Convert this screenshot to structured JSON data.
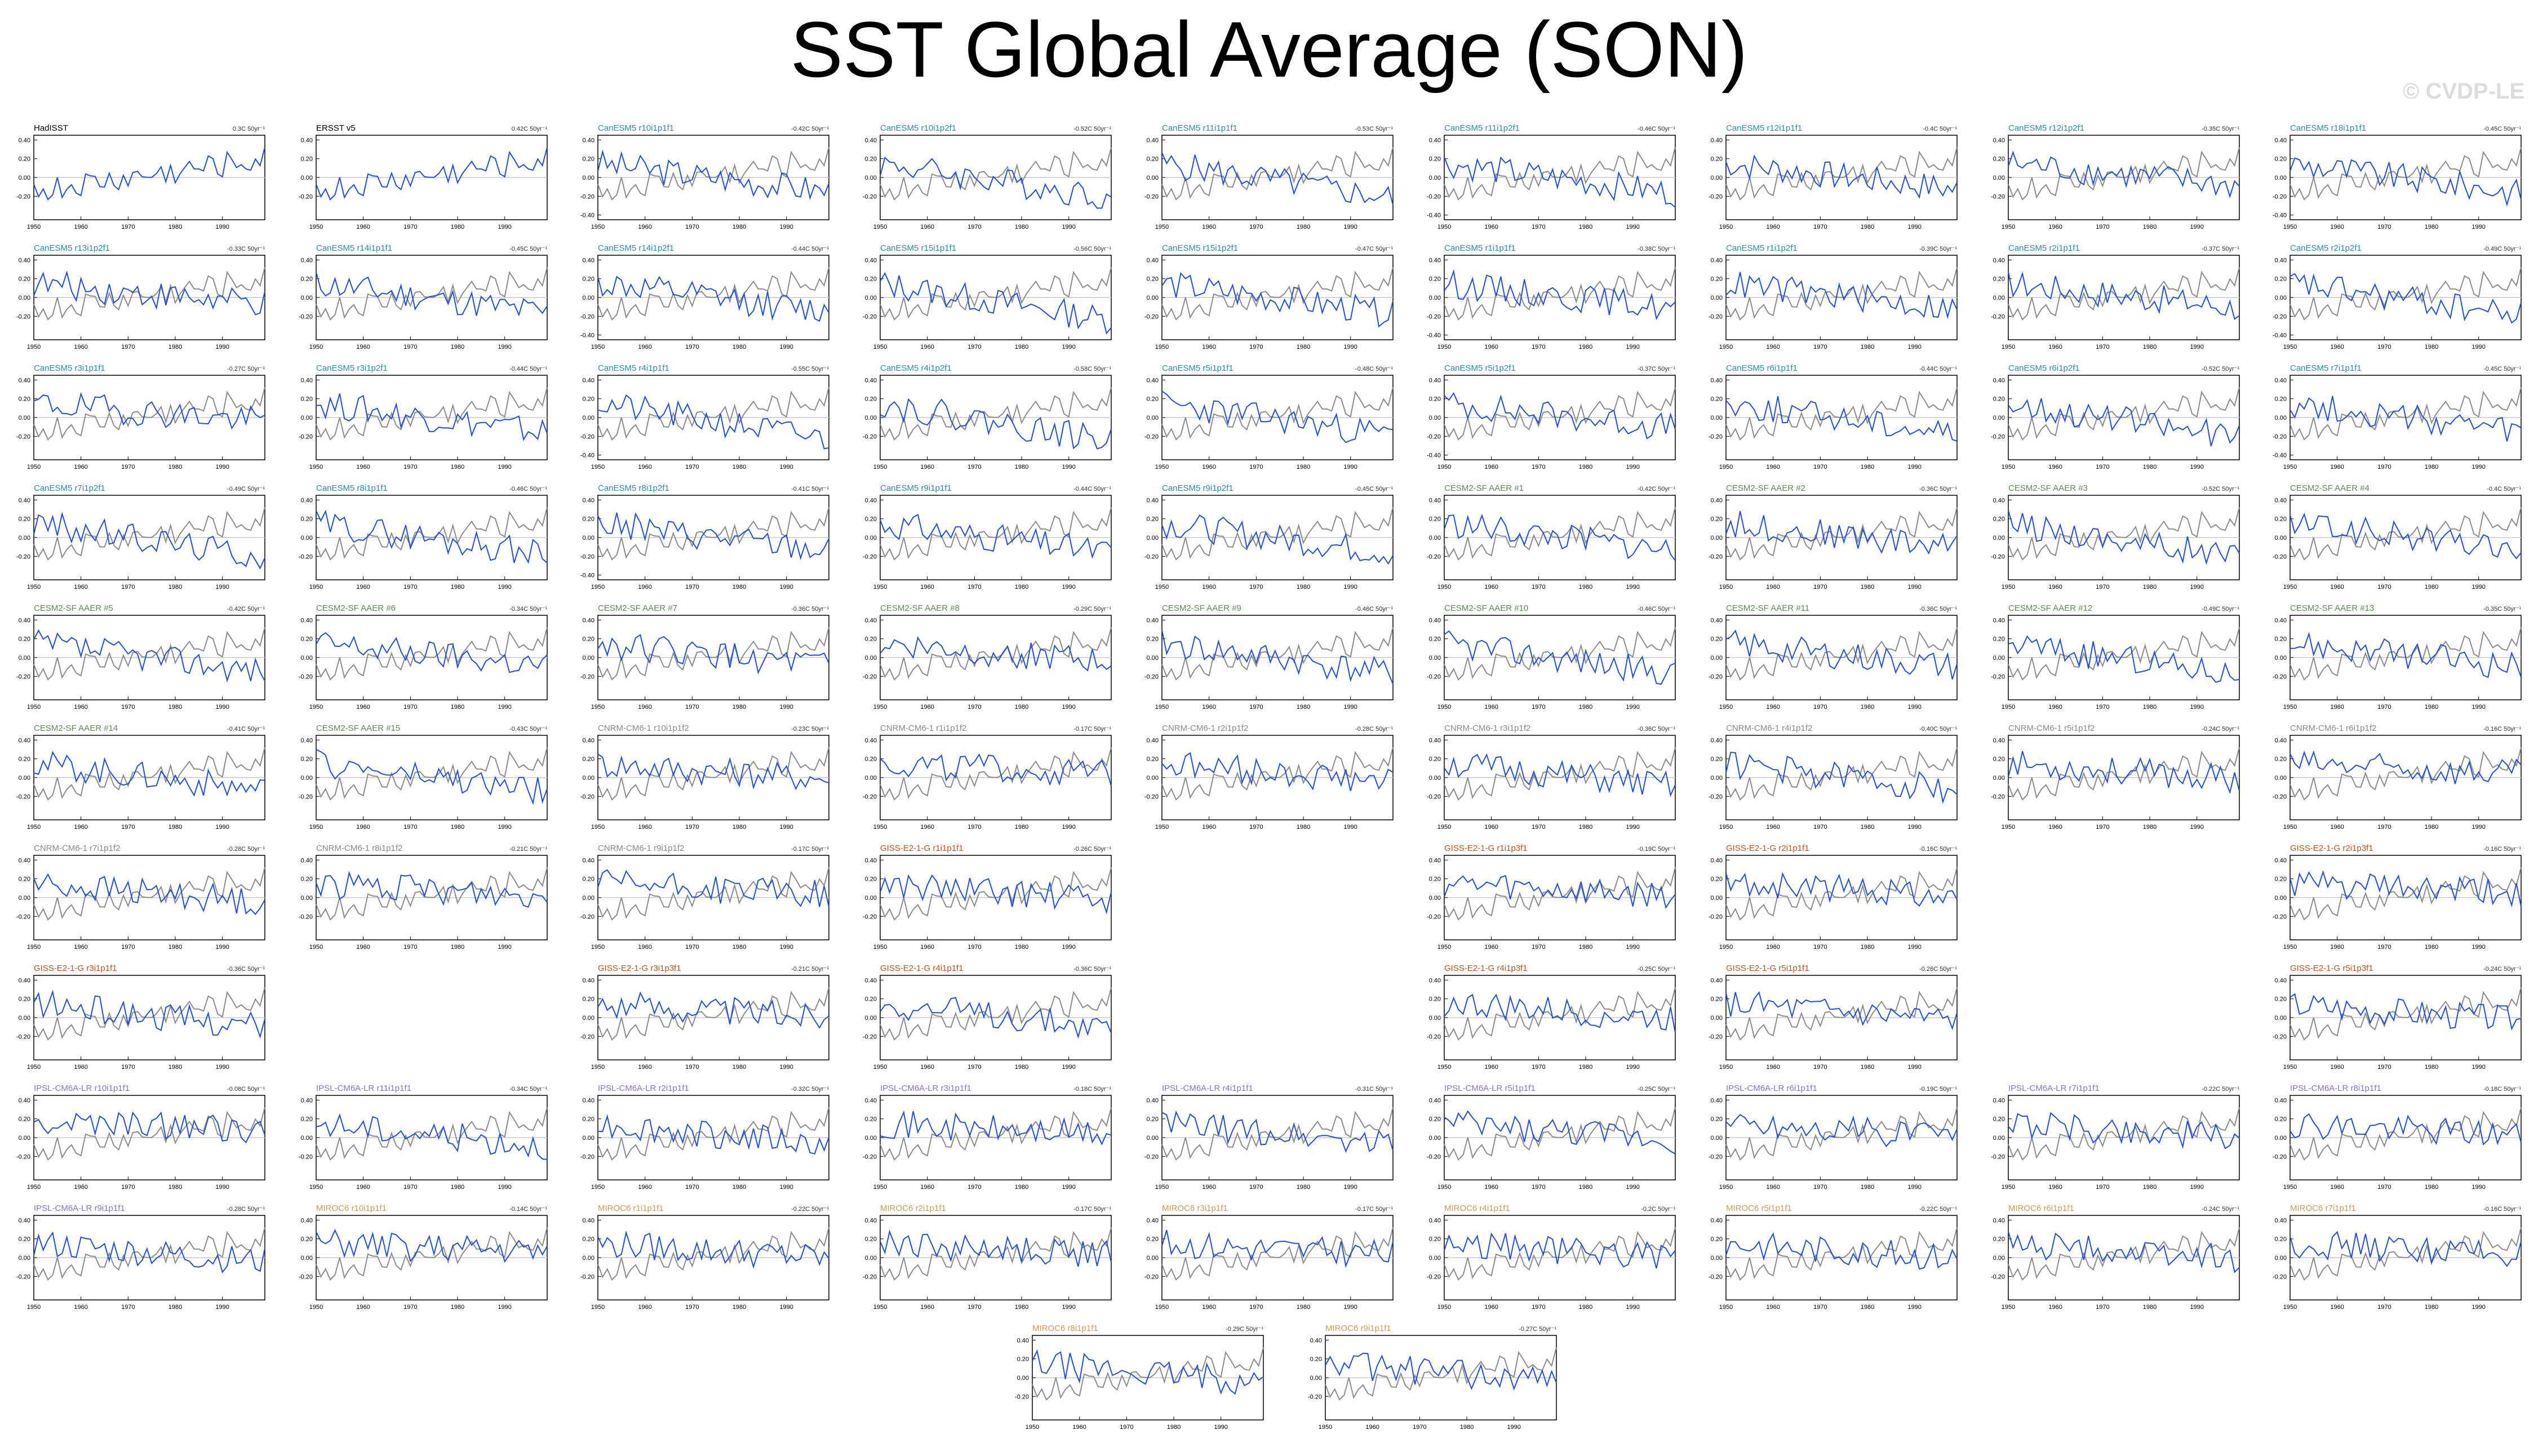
{
  "title": "SST Global Average (SON)",
  "watermark": "© CVDP-LE",
  "colors": {
    "CanESM5": "#2a8fa5",
    "CESM2-SF AAER": "#5e8c55",
    "CNRM-CM6-1": "#8a8a8a",
    "GISS-E2-1-G": "#c2541f",
    "IPSL-CM6A-LR": "#8a72c9",
    "MIROC6": "#d19a5a",
    "observation": "#000000",
    "model_line": "#1f4fd6",
    "obs_line": "#8c8c8c",
    "zero_line": "#c8c8c8"
  },
  "chart_data": {
    "type": "line",
    "x_ticks": [
      "1950",
      "1960",
      "1970",
      "1980",
      "1990"
    ],
    "y_ticks": [
      "0.40",
      "0.20",
      "0.00",
      "-0.20"
    ],
    "y_ticks_extended": [
      "0.40",
      "0.20",
      "0.00",
      "-0.20",
      "-0.40"
    ],
    "xlim": [
      1950,
      1999
    ],
    "ylim": [
      -0.45,
      0.45
    ],
    "grid": false,
    "units_suffix": "50yr⁻¹",
    "note": "trend labels are shown at top-right of each panel",
    "panels": [
      {
        "name": "HadISST",
        "group": "observation",
        "trend": "0.3C",
        "series": "obs",
        "seed": 1
      },
      {
        "name": "ERSST v5",
        "group": "observation",
        "trend": "0.42C",
        "series": "obs",
        "seed": 2
      },
      {
        "name": "CanESM5 r10i1p1f1",
        "group": "CanESM5",
        "trend": "-0.42C",
        "seed": 3
      },
      {
        "name": "CanESM5 r10i1p2f1",
        "group": "CanESM5",
        "trend": "-0.52C",
        "seed": 4
      },
      {
        "name": "CanESM5 r11i1p1f1",
        "group": "CanESM5",
        "trend": "-0.53C",
        "seed": 5
      },
      {
        "name": "CanESM5 r11i1p2f1",
        "group": "CanESM5",
        "trend": "-0.46C",
        "seed": 6
      },
      {
        "name": "CanESM5 r12i1p1f1",
        "group": "CanESM5",
        "trend": "-0.4C",
        "seed": 7
      },
      {
        "name": "CanESM5 r12i1p2f1",
        "group": "CanESM5",
        "trend": "-0.35C",
        "seed": 8
      },
      {
        "name": "CanESM5 r18i1p1f1",
        "group": "CanESM5",
        "trend": "-0.45C",
        "seed": 9
      },
      {
        "name": "CanESM5 r13i1p2f1",
        "group": "CanESM5",
        "trend": "-0.33C",
        "seed": 10
      },
      {
        "name": "CanESM5 r14i1p1f1",
        "group": "CanESM5",
        "trend": "-0.45C",
        "seed": 11
      },
      {
        "name": "CanESM5 r14i1p2f1",
        "group": "CanESM5",
        "trend": "-0.44C",
        "seed": 12
      },
      {
        "name": "CanESM5 r15i1p1f1",
        "group": "CanESM5",
        "trend": "-0.56C",
        "seed": 13
      },
      {
        "name": "CanESM5 r15i1p2f1",
        "group": "CanESM5",
        "trend": "-0.47C",
        "seed": 14
      },
      {
        "name": "CanESM5 r1i1p1f1",
        "group": "CanESM5",
        "trend": "-0.38C",
        "seed": 15
      },
      {
        "name": "CanESM5 r1i1p2f1",
        "group": "CanESM5",
        "trend": "-0.39C",
        "seed": 16
      },
      {
        "name": "CanESM5 r2i1p1f1",
        "group": "CanESM5",
        "trend": "-0.37C",
        "seed": 17
      },
      {
        "name": "CanESM5 r2i1p2f1",
        "group": "CanESM5",
        "trend": "-0.49C",
        "seed": 18
      },
      {
        "name": "CanESM5 r3i1p1f1",
        "group": "CanESM5",
        "trend": "-0.27C",
        "seed": 19
      },
      {
        "name": "CanESM5 r3i1p2f1",
        "group": "CanESM5",
        "trend": "-0.44C",
        "seed": 20
      },
      {
        "name": "CanESM5 r4i1p1f1",
        "group": "CanESM5",
        "trend": "-0.55C",
        "seed": 21
      },
      {
        "name": "CanESM5 r4i1p2f1",
        "group": "CanESM5",
        "trend": "-0.58C",
        "seed": 22
      },
      {
        "name": "CanESM5 r5i1p1f1",
        "group": "CanESM5",
        "trend": "-0.48C",
        "seed": 23
      },
      {
        "name": "CanESM5 r5i1p2f1",
        "group": "CanESM5",
        "trend": "-0.37C",
        "seed": 24
      },
      {
        "name": "CanESM5 r6i1p1f1",
        "group": "CanESM5",
        "trend": "-0.44C",
        "seed": 25
      },
      {
        "name": "CanESM5 r6i1p2f1",
        "group": "CanESM5",
        "trend": "-0.52C",
        "seed": 26
      },
      {
        "name": "CanESM5 r7i1p1f1",
        "group": "CanESM5",
        "trend": "-0.45C",
        "seed": 27
      },
      {
        "name": "CanESM5 r7i1p2f1",
        "group": "CanESM5",
        "trend": "-0.49C",
        "seed": 28
      },
      {
        "name": "CanESM5 r8i1p1f1",
        "group": "CanESM5",
        "trend": "-0.46C",
        "seed": 29
      },
      {
        "name": "CanESM5 r8i1p2f1",
        "group": "CanESM5",
        "trend": "-0.41C",
        "seed": 30
      },
      {
        "name": "CanESM5 r9i1p1f1",
        "group": "CanESM5",
        "trend": "-0.44C",
        "seed": 31
      },
      {
        "name": "CanESM5 r9i1p2f1",
        "group": "CanESM5",
        "trend": "-0.45C",
        "seed": 32
      },
      {
        "name": "CESM2-SF AAER #1",
        "group": "CESM2-SF AAER",
        "trend": "-0.42C",
        "seed": 33
      },
      {
        "name": "CESM2-SF AAER #2",
        "group": "CESM2-SF AAER",
        "trend": "-0.36C",
        "seed": 34
      },
      {
        "name": "CESM2-SF AAER #3",
        "group": "CESM2-SF AAER",
        "trend": "-0.52C",
        "seed": 35
      },
      {
        "name": "CESM2-SF AAER #4",
        "group": "CESM2-SF AAER",
        "trend": "-0.4C",
        "seed": 36
      },
      {
        "name": "CESM2-SF AAER #5",
        "group": "CESM2-SF AAER",
        "trend": "-0.42C",
        "seed": 37
      },
      {
        "name": "CESM2-SF AAER #6",
        "group": "CESM2-SF AAER",
        "trend": "-0.34C",
        "seed": 38
      },
      {
        "name": "CESM2-SF AAER #7",
        "group": "CESM2-SF AAER",
        "trend": "-0.36C",
        "seed": 39
      },
      {
        "name": "CESM2-SF AAER #8",
        "group": "CESM2-SF AAER",
        "trend": "-0.29C",
        "seed": 40
      },
      {
        "name": "CESM2-SF AAER #9",
        "group": "CESM2-SF AAER",
        "trend": "-0.46C",
        "seed": 41
      },
      {
        "name": "CESM2-SF AAER #10",
        "group": "CESM2-SF AAER",
        "trend": "-0.46C",
        "seed": 42
      },
      {
        "name": "CESM2-SF AAER #11",
        "group": "CESM2-SF AAER",
        "trend": "-0.36C",
        "seed": 43
      },
      {
        "name": "CESM2-SF AAER #12",
        "group": "CESM2-SF AAER",
        "trend": "-0.49C",
        "seed": 44
      },
      {
        "name": "CESM2-SF AAER #13",
        "group": "CESM2-SF AAER",
        "trend": "-0.35C",
        "seed": 45
      },
      {
        "name": "CESM2-SF AAER #14",
        "group": "CESM2-SF AAER",
        "trend": "-0.41C",
        "seed": 46
      },
      {
        "name": "CESM2-SF AAER #15",
        "group": "CESM2-SF AAER",
        "trend": "-0.43C",
        "seed": 47
      },
      {
        "name": "CNRM-CM6-1 r10i1p1f2",
        "group": "CNRM-CM6-1",
        "trend": "-0.23C",
        "seed": 48
      },
      {
        "name": "CNRM-CM6-1 r1i1p1f2",
        "group": "CNRM-CM6-1",
        "trend": "-0.17C",
        "seed": 49
      },
      {
        "name": "CNRM-CM6-1 r2i1p1f2",
        "group": "CNRM-CM6-1",
        "trend": "-0.28C",
        "seed": 50
      },
      {
        "name": "CNRM-CM6-1 r3i1p1f2",
        "group": "CNRM-CM6-1",
        "trend": "-0.36C",
        "seed": 51
      },
      {
        "name": "CNRM-CM6-1 r4i1p1f2",
        "group": "CNRM-CM6-1",
        "trend": "-0.40C",
        "seed": 52
      },
      {
        "name": "CNRM-CM6-1 r5i1p1f2",
        "group": "CNRM-CM6-1",
        "trend": "-0.24C",
        "seed": 53
      },
      {
        "name": "CNRM-CM6-1 r6i1p1f2",
        "group": "CNRM-CM6-1",
        "trend": "-0.16C",
        "seed": 54
      },
      {
        "name": "CNRM-CM6-1 r7i1p1f2",
        "group": "CNRM-CM6-1",
        "trend": "-0.28C",
        "seed": 55
      },
      {
        "name": "CNRM-CM6-1 r8i1p1f2",
        "group": "CNRM-CM6-1",
        "trend": "-0.21C",
        "seed": 56
      },
      {
        "name": "CNRM-CM6-1 r9i1p1f2",
        "group": "CNRM-CM6-1",
        "trend": "-0.17C",
        "seed": 57
      },
      {
        "name": "GISS-E2-1-G r1i1p1f1",
        "group": "GISS-E2-1-G",
        "trend": "-0.26C",
        "seed": 58
      },
      {
        "name": "GISS-E2-1-G r1i1p3f1",
        "group": "GISS-E2-1-G",
        "trend": "-0.19C",
        "seed": 59
      },
      {
        "name": "GISS-E2-1-G r2i1p1f1",
        "group": "GISS-E2-1-G",
        "trend": "-0.16C",
        "seed": 60
      },
      {
        "name": "GISS-E2-1-G r2i1p3f1",
        "group": "GISS-E2-1-G",
        "trend": "-0.16C",
        "seed": 61
      },
      {
        "name": "GISS-E2-1-G r3i1p1f1",
        "group": "GISS-E2-1-G",
        "trend": "-0.36C",
        "seed": 62
      },
      {
        "name": "GISS-E2-1-G r3i1p3f1",
        "group": "GISS-E2-1-G",
        "trend": "-0.21C",
        "seed": 63
      },
      {
        "name": "GISS-E2-1-G r4i1p1f1",
        "group": "GISS-E2-1-G",
        "trend": "-0.36C",
        "seed": 64
      },
      {
        "name": "GISS-E2-1-G r4i1p3f1",
        "group": "GISS-E2-1-G",
        "trend": "-0.25C",
        "seed": 65
      },
      {
        "name": "GISS-E2-1-G r5i1p1f1",
        "group": "GISS-E2-1-G",
        "trend": "-0.26C",
        "seed": 66
      },
      {
        "name": "GISS-E2-1-G r5i1p3f1",
        "group": "GISS-E2-1-G",
        "trend": "-0.24C",
        "seed": 67
      },
      {
        "name": "IPSL-CM6A-LR r10i1p1f1",
        "group": "IPSL-CM6A-LR",
        "trend": "-0.08C",
        "seed": 68
      },
      {
        "name": "IPSL-CM6A-LR r11i1p1f1",
        "group": "IPSL-CM6A-LR",
        "trend": "-0.34C",
        "seed": 69
      },
      {
        "name": "IPSL-CM6A-LR r2i1p1f1",
        "group": "IPSL-CM6A-LR",
        "trend": "-0.32C",
        "seed": 70
      },
      {
        "name": "IPSL-CM6A-LR r3i1p1f1",
        "group": "IPSL-CM6A-LR",
        "trend": "-0.18C",
        "seed": 71
      },
      {
        "name": "IPSL-CM6A-LR r4i1p1f1",
        "group": "IPSL-CM6A-LR",
        "trend": "-0.31C",
        "seed": 72
      },
      {
        "name": "IPSL-CM6A-LR r5i1p1f1",
        "group": "IPSL-CM6A-LR",
        "trend": "-0.25C",
        "seed": 73
      },
      {
        "name": "IPSL-CM6A-LR r6i1p1f1",
        "group": "IPSL-CM6A-LR",
        "trend": "-0.19C",
        "seed": 74
      },
      {
        "name": "IPSL-CM6A-LR r7i1p1f1",
        "group": "IPSL-CM6A-LR",
        "trend": "-0.22C",
        "seed": 75
      },
      {
        "name": "IPSL-CM6A-LR r8i1p1f1",
        "group": "IPSL-CM6A-LR",
        "trend": "-0.18C",
        "seed": 76
      },
      {
        "name": "IPSL-CM6A-LR r9i1p1f1",
        "group": "IPSL-CM6A-LR",
        "trend": "-0.28C",
        "seed": 77
      },
      {
        "name": "MIROC6 r10i1p1f1",
        "group": "MIROC6",
        "trend": "-0.14C",
        "seed": 78
      },
      {
        "name": "MIROC6 r1i1p1f1",
        "group": "MIROC6",
        "trend": "-0.22C",
        "seed": 79
      },
      {
        "name": "MIROC6 r2i1p1f1",
        "group": "MIROC6",
        "trend": "-0.17C",
        "seed": 80
      },
      {
        "name": "MIROC6 r3i1p1f1",
        "group": "MIROC6",
        "trend": "-0.17C",
        "seed": 81
      },
      {
        "name": "MIROC6 r4i1p1f1",
        "group": "MIROC6",
        "trend": "-0.2C",
        "seed": 82
      },
      {
        "name": "MIROC6 r5i1p1f1",
        "group": "MIROC6",
        "trend": "-0.22C",
        "seed": 83
      },
      {
        "name": "MIROC6 r6i1p1f1",
        "group": "MIROC6",
        "trend": "-0.24C",
        "seed": 84
      },
      {
        "name": "MIROC6 r7i1p1f1",
        "group": "MIROC6",
        "trend": "-0.16C",
        "seed": 85
      },
      {
        "name": "MIROC6 r8i1p1f1",
        "group": "MIROC6",
        "trend": "-0.29C",
        "seed": 86
      },
      {
        "name": "MIROC6 r9i1p1f1",
        "group": "MIROC6",
        "trend": "-0.27C",
        "seed": 87
      }
    ]
  }
}
